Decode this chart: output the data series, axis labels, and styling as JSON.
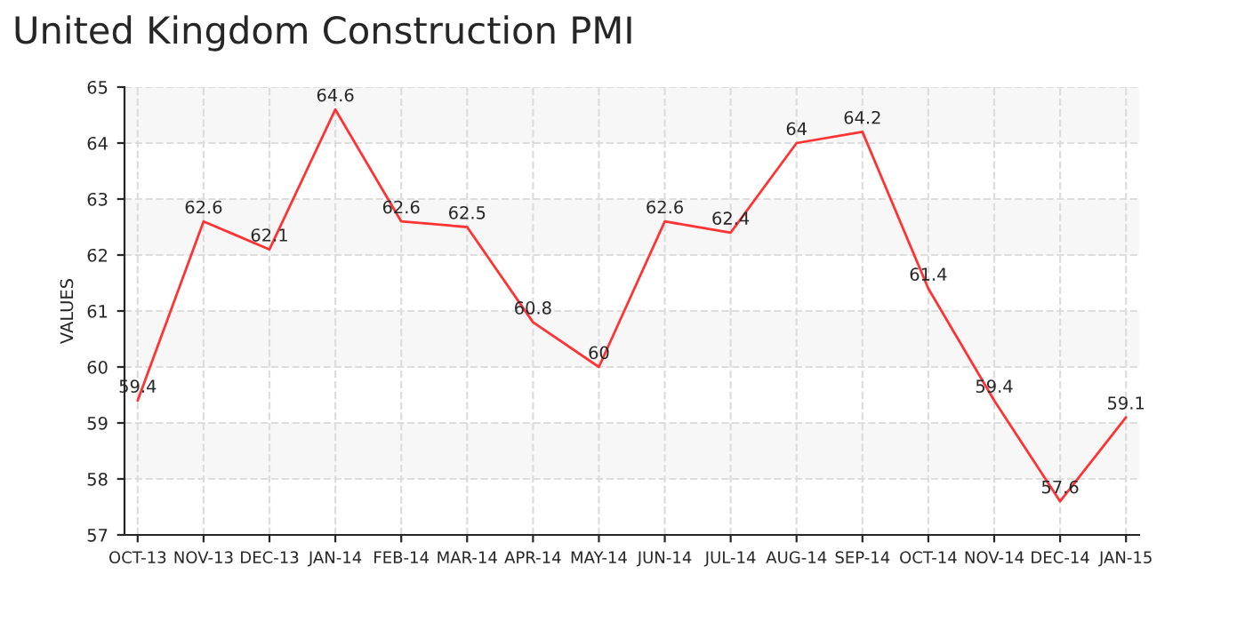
{
  "chart_data": {
    "type": "line",
    "title": "United Kingdom Construction PMI",
    "ylabel": "VALUES",
    "categories": [
      "OCT-13",
      "NOV-13",
      "DEC-13",
      "JAN-14",
      "FEB-14",
      "MAR-14",
      "APR-14",
      "MAY-14",
      "JUN-14",
      "JUL-14",
      "AUG-14",
      "SEP-14",
      "OCT-14",
      "NOV-14",
      "DEC-14",
      "JAN-15"
    ],
    "series": [
      {
        "color": "#ff3333",
        "values": [
          59.4,
          62.6,
          62.1,
          64.6,
          62.6,
          62.5,
          60.8,
          60,
          62.6,
          62.4,
          64,
          64.2,
          61.4,
          59.4,
          57.6,
          59.1
        ]
      }
    ],
    "ylim": [
      57,
      65
    ],
    "yticks": [
      57,
      58,
      59,
      60,
      61,
      62,
      63,
      64,
      65
    ],
    "grid": true,
    "data_labels": true,
    "marker": "none",
    "line_style": "solid"
  }
}
